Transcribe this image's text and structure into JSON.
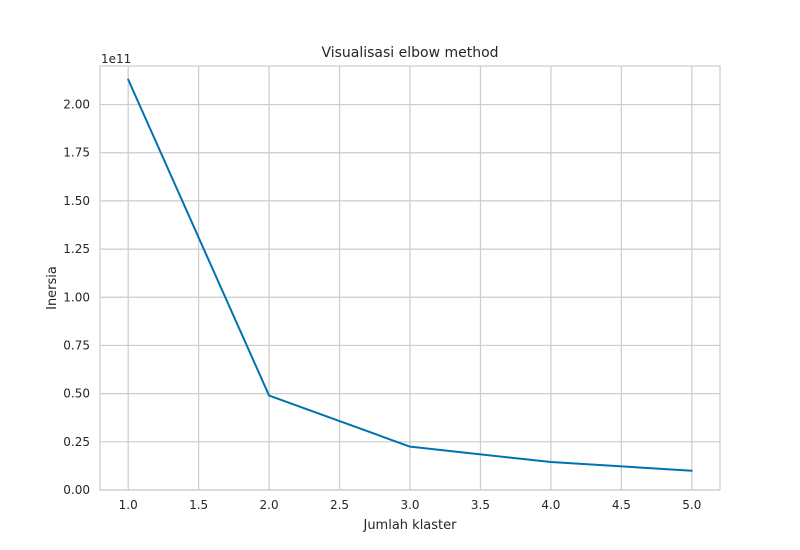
{
  "chart_data": {
    "type": "line",
    "title": "Visualisasi elbow method",
    "xlabel": "Jumlah klaster",
    "ylabel": "Inersia",
    "y_offset_label": "1e11",
    "x": [
      1,
      2,
      3,
      4,
      5
    ],
    "series": [
      {
        "values": [
          213000000000.0,
          49000000000.0,
          22500000000.0,
          14500000000.0,
          10000000000.0
        ],
        "color": "#0072b2"
      }
    ],
    "xlim": [
      0.8,
      5.2
    ],
    "ylim": [
      0,
      220000000000.0
    ],
    "x_ticks": [
      1.0,
      1.5,
      2.0,
      2.5,
      3.0,
      3.5,
      4.0,
      4.5,
      5.0
    ],
    "x_tick_labels": [
      "1.0",
      "1.5",
      "2.0",
      "2.5",
      "3.0",
      "3.5",
      "4.0",
      "4.5",
      "5.0"
    ],
    "y_ticks": [
      0,
      25000000000.0,
      50000000000.0,
      75000000000.0,
      100000000000.0,
      125000000000.0,
      150000000000.0,
      175000000000.0,
      200000000000.0
    ],
    "y_tick_labels": [
      "0.00",
      "0.25",
      "0.50",
      "0.75",
      "1.00",
      "1.25",
      "1.50",
      "1.75",
      "2.00"
    ],
    "grid": true,
    "colors": {
      "line": "#0072b2",
      "grid": "#cccccc",
      "spine": "#cccccc",
      "text": "#262626"
    }
  }
}
